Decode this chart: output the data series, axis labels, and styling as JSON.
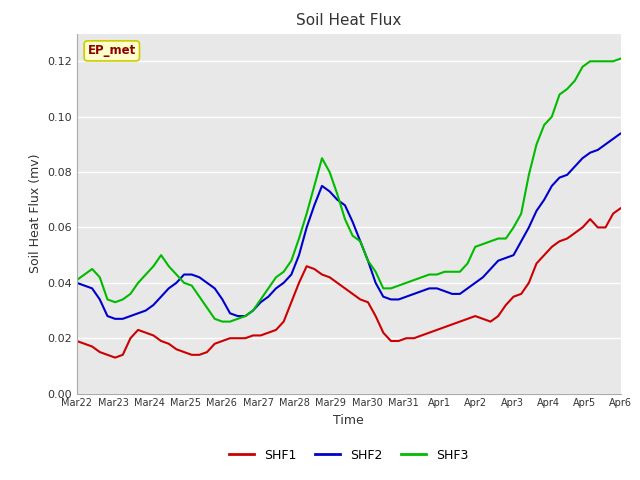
{
  "title": "Soil Heat Flux",
  "xlabel": "Time",
  "ylabel": "Soil Heat Flux (mv)",
  "ylim": [
    0.0,
    0.13
  ],
  "yticks": [
    0.0,
    0.02,
    0.04,
    0.06,
    0.08,
    0.1,
    0.12
  ],
  "annotation_text": "EP_met",
  "annotation_color": "#8B0000",
  "annotation_bg": "#FFFFCC",
  "annotation_edge": "#CCCC00",
  "bg_color": "#E8E8E8",
  "fig_bg": "#FFFFFF",
  "line_colors": {
    "SHF1": "#CC0000",
    "SHF2": "#0000CC",
    "SHF3": "#00BB00"
  },
  "line_width": 1.5,
  "x_labels": [
    "Mar 22",
    "Mar 23",
    "Mar 24",
    "Mar 25",
    "Mar 26",
    "Mar 27",
    "Mar 28",
    "Mar 29",
    "Mar 30",
    "Mar 31",
    "Apr 1",
    "Apr 2",
    "Apr 3",
    "Apr 4",
    "Apr 5",
    "Apr 6"
  ],
  "shf1": [
    0.019,
    0.018,
    0.017,
    0.015,
    0.014,
    0.013,
    0.014,
    0.02,
    0.023,
    0.022,
    0.021,
    0.019,
    0.018,
    0.016,
    0.015,
    0.014,
    0.014,
    0.015,
    0.018,
    0.019,
    0.02,
    0.02,
    0.02,
    0.021,
    0.021,
    0.022,
    0.023,
    0.026,
    0.033,
    0.04,
    0.046,
    0.045,
    0.043,
    0.042,
    0.04,
    0.038,
    0.036,
    0.034,
    0.033,
    0.028,
    0.022,
    0.019,
    0.019,
    0.02,
    0.02,
    0.021,
    0.022,
    0.023,
    0.024,
    0.025,
    0.026,
    0.027,
    0.028,
    0.027,
    0.026,
    0.028,
    0.032,
    0.035,
    0.036,
    0.04,
    0.047,
    0.05,
    0.053,
    0.055,
    0.056,
    0.058,
    0.06,
    0.063,
    0.06,
    0.06,
    0.065,
    0.067
  ],
  "shf2": [
    0.04,
    0.039,
    0.038,
    0.034,
    0.028,
    0.027,
    0.027,
    0.028,
    0.029,
    0.03,
    0.032,
    0.035,
    0.038,
    0.04,
    0.043,
    0.043,
    0.042,
    0.04,
    0.038,
    0.034,
    0.029,
    0.028,
    0.028,
    0.03,
    0.033,
    0.035,
    0.038,
    0.04,
    0.043,
    0.05,
    0.06,
    0.068,
    0.075,
    0.073,
    0.07,
    0.068,
    0.062,
    0.055,
    0.048,
    0.04,
    0.035,
    0.034,
    0.034,
    0.035,
    0.036,
    0.037,
    0.038,
    0.038,
    0.037,
    0.036,
    0.036,
    0.038,
    0.04,
    0.042,
    0.045,
    0.048,
    0.049,
    0.05,
    0.055,
    0.06,
    0.066,
    0.07,
    0.075,
    0.078,
    0.079,
    0.082,
    0.085,
    0.087,
    0.088,
    0.09,
    0.092,
    0.094
  ],
  "shf3": [
    0.041,
    0.043,
    0.045,
    0.042,
    0.034,
    0.033,
    0.034,
    0.036,
    0.04,
    0.043,
    0.046,
    0.05,
    0.046,
    0.043,
    0.04,
    0.039,
    0.035,
    0.031,
    0.027,
    0.026,
    0.026,
    0.027,
    0.028,
    0.03,
    0.034,
    0.038,
    0.042,
    0.044,
    0.048,
    0.056,
    0.065,
    0.075,
    0.085,
    0.08,
    0.072,
    0.063,
    0.057,
    0.055,
    0.048,
    0.044,
    0.038,
    0.038,
    0.039,
    0.04,
    0.041,
    0.042,
    0.043,
    0.043,
    0.044,
    0.044,
    0.044,
    0.047,
    0.053,
    0.054,
    0.055,
    0.056,
    0.056,
    0.06,
    0.065,
    0.079,
    0.09,
    0.097,
    0.1,
    0.108,
    0.11,
    0.113,
    0.118,
    0.12,
    0.12,
    0.12,
    0.12,
    0.121
  ]
}
